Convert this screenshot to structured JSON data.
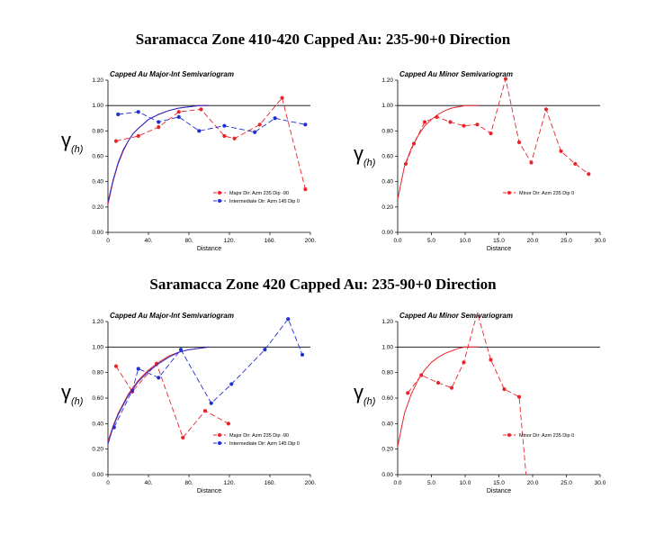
{
  "titles": [
    "Saramacca Zone 410-420 Capped Au: 235-90+0 Direction",
    "Saramacca Zone 420 Capped Au: 235-90+0 Direction"
  ],
  "ylabel_main": "γ",
  "ylabel_sub": "(h)",
  "colors": {
    "red": "#e8252b",
    "blue": "#1f2fd0",
    "black": "#000000"
  },
  "chart_data": [
    {
      "type": "line",
      "title": "Capped Au Major-Int Semivariogram",
      "xlabel": "Distance",
      "xlim": [
        0,
        200
      ],
      "ylim": [
        0,
        1.2
      ],
      "xticks": [
        "0",
        "40.",
        "80.",
        "120.",
        "160.",
        "200."
      ],
      "yticks": [
        "0.00",
        "0.20",
        "0.40",
        "0.60",
        "0.80",
        "1.00",
        "1.20"
      ],
      "sill": 1.0,
      "legend_position": "lower-right",
      "series": [
        {
          "name": "Major Dir: Azm 235 Dip -90",
          "color": "red",
          "marker": true,
          "x": [
            8,
            30,
            50,
            70,
            92,
            115,
            125,
            150,
            172,
            195
          ],
          "y": [
            0.72,
            0.76,
            0.83,
            0.95,
            0.97,
            0.76,
            0.74,
            0.85,
            1.06,
            0.34
          ]
        },
        {
          "name": "Intermediate Dir: Azm 145 Dip 0",
          "color": "blue",
          "marker": true,
          "x": [
            10,
            30,
            50,
            70,
            90,
            115,
            145,
            165,
            195
          ],
          "y": [
            0.93,
            0.95,
            0.87,
            0.91,
            0.8,
            0.84,
            0.79,
            0.9,
            0.85
          ]
        },
        {
          "name": "",
          "color": "red",
          "marker": false,
          "dash": "solid",
          "x": [
            0,
            5,
            10,
            15,
            20,
            25,
            30,
            40,
            50,
            60,
            70,
            80,
            90,
            100
          ],
          "y": [
            0.22,
            0.4,
            0.54,
            0.64,
            0.72,
            0.78,
            0.82,
            0.89,
            0.93,
            0.96,
            0.98,
            0.99,
            1.0,
            1.0
          ]
        },
        {
          "name": "",
          "color": "blue",
          "marker": false,
          "dash": "solid",
          "x": [
            0,
            5,
            10,
            15,
            20,
            25,
            30,
            40,
            50,
            60,
            70,
            80,
            90,
            100
          ],
          "y": [
            0.24,
            0.41,
            0.55,
            0.65,
            0.72,
            0.78,
            0.82,
            0.89,
            0.93,
            0.96,
            0.98,
            0.99,
            1.0,
            1.0
          ]
        }
      ]
    },
    {
      "type": "line",
      "title": "Capped Au Minor Semivariogram",
      "xlabel": "Distance",
      "xlim": [
        0,
        30
      ],
      "ylim": [
        0,
        1.2
      ],
      "xticks": [
        "0.0",
        "5.0",
        "10.0",
        "15.0",
        "20.0",
        "25.0",
        "30.0"
      ],
      "yticks": [
        "0.00",
        "0.20",
        "0.40",
        "0.60",
        "0.80",
        "1.00",
        "1.20"
      ],
      "sill": 1.0,
      "legend_position": "lower-right",
      "series": [
        {
          "name": "Minor Dir: Azm 235 Dip 0",
          "color": "red",
          "marker": true,
          "x": [
            1.2,
            2.4,
            4.0,
            5.8,
            7.8,
            9.8,
            11.8,
            13.8,
            16.0,
            18.0,
            19.8,
            22.0,
            24.2,
            26.3,
            28.3
          ],
          "y": [
            0.54,
            0.7,
            0.87,
            0.91,
            0.87,
            0.84,
            0.85,
            0.78,
            1.21,
            0.71,
            0.55,
            0.97,
            0.64,
            0.54,
            0.46
          ]
        },
        {
          "name": "",
          "color": "red",
          "marker": false,
          "dash": "solid",
          "x": [
            0,
            1,
            2,
            3,
            4,
            5,
            6,
            7,
            8,
            9,
            10,
            12
          ],
          "y": [
            0.26,
            0.52,
            0.66,
            0.76,
            0.84,
            0.89,
            0.93,
            0.96,
            0.98,
            0.99,
            1.0,
            1.0
          ]
        }
      ]
    },
    {
      "type": "line",
      "title": "Capped Au Major-Int Semivariogram",
      "xlabel": "Distance",
      "xlim": [
        0,
        200
      ],
      "ylim": [
        0,
        1.2
      ],
      "xticks": [
        "0",
        "40.",
        "80.",
        "120.",
        "160.",
        "200."
      ],
      "yticks": [
        "0.00",
        "0.20",
        "0.40",
        "0.60",
        "0.80",
        "1.00",
        "1.20"
      ],
      "sill": 1.0,
      "legend_position": "lower-right",
      "series": [
        {
          "name": "Major Dir: Azm 235 Dip -90",
          "color": "red",
          "marker": true,
          "x": [
            8,
            24,
            48,
            74,
            96,
            119
          ],
          "y": [
            0.85,
            0.65,
            0.87,
            0.29,
            0.5,
            0.4
          ]
        },
        {
          "name": "Intermediate Dir: Azm 145 Dip 0",
          "color": "blue",
          "marker": true,
          "x": [
            6,
            24,
            30,
            50,
            72,
            102,
            122,
            155,
            178,
            192
          ],
          "y": [
            0.37,
            0.66,
            0.83,
            0.76,
            0.98,
            0.56,
            0.71,
            0.98,
            1.22,
            0.94
          ]
        },
        {
          "name": "",
          "color": "red",
          "marker": false,
          "dash": "solid",
          "x": [
            0,
            5,
            10,
            20,
            30,
            40,
            50,
            60,
            70,
            80,
            90,
            100
          ],
          "y": [
            0.26,
            0.38,
            0.48,
            0.63,
            0.74,
            0.82,
            0.88,
            0.93,
            0.96,
            0.98,
            0.99,
            1.0
          ]
        },
        {
          "name": "",
          "color": "blue",
          "marker": false,
          "dash": "solid",
          "x": [
            0,
            5,
            10,
            20,
            30,
            40,
            50,
            60,
            70,
            80,
            90,
            100
          ],
          "y": [
            0.24,
            0.37,
            0.47,
            0.62,
            0.73,
            0.81,
            0.87,
            0.92,
            0.96,
            0.98,
            0.99,
            1.0
          ]
        }
      ]
    },
    {
      "type": "line",
      "title": "Capped Au Minor Semivariogram",
      "xlabel": "Distance",
      "xlim": [
        0,
        30
      ],
      "ylim": [
        0,
        1.2
      ],
      "xticks": [
        "0.0",
        "5.0",
        "10.0",
        "15.0",
        "20.0",
        "25.0",
        "30.0"
      ],
      "yticks": [
        "0.00",
        "0.20",
        "0.40",
        "0.60",
        "0.80",
        "1.00",
        "1.20"
      ],
      "sill": 1.0,
      "legend_position": "lower-right",
      "series": [
        {
          "name": "Minor Dir: Azm 235 Dip 0",
          "color": "red",
          "marker": true,
          "x": [
            1.5,
            3.5,
            6.0,
            8.0,
            9.8,
            11.8,
            13.8,
            15.8,
            18.0,
            19.1
          ],
          "y": [
            0.64,
            0.78,
            0.72,
            0.68,
            0.88,
            1.27,
            0.9,
            0.67,
            0.61,
            -0.05
          ]
        },
        {
          "name": "",
          "color": "red",
          "marker": false,
          "dash": "solid",
          "x": [
            0,
            1,
            2,
            3,
            4,
            5,
            6,
            7,
            8,
            9,
            10,
            12
          ],
          "y": [
            0.22,
            0.48,
            0.63,
            0.74,
            0.82,
            0.88,
            0.92,
            0.95,
            0.97,
            0.99,
            1.0,
            1.0
          ]
        }
      ]
    }
  ]
}
